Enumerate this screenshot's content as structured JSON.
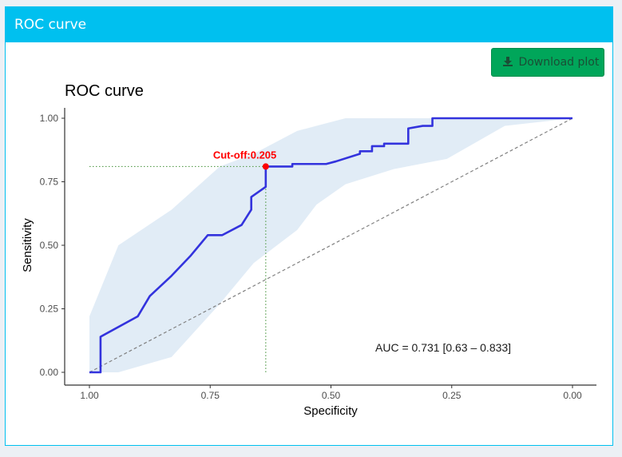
{
  "panel": {
    "title": "ROC curve"
  },
  "download": {
    "label": "Download plot",
    "icon": "download-icon"
  },
  "colors": {
    "header": "#00c0ef",
    "button": "#00a65a",
    "curve": "#3333dd",
    "band": "#dce9f5",
    "cutoff": "#ff0000",
    "guide": "#5a9e4f"
  },
  "chart_data": {
    "type": "line",
    "title": "ROC curve",
    "xlabel": "Specificity",
    "ylabel": "Sensitivity",
    "xlim": [
      1.0,
      0.0
    ],
    "ylim": [
      0.0,
      1.0
    ],
    "x_reversed": true,
    "xticks": [
      "1.00",
      "0.75",
      "0.50",
      "0.25",
      "0.00"
    ],
    "xtick_values": [
      1.0,
      0.75,
      0.5,
      0.25,
      0.0
    ],
    "yticks": [
      "0.00",
      "0.25",
      "0.50",
      "0.75",
      "1.00"
    ],
    "ytick_values": [
      0.0,
      0.25,
      0.5,
      0.75,
      1.0
    ],
    "grid": false,
    "series": [
      {
        "role": "roc",
        "x": [
          1.0,
          0.977,
          0.977,
          0.9,
          0.875,
          0.83,
          0.79,
          0.755,
          0.725,
          0.685,
          0.665,
          0.665,
          0.635,
          0.635,
          0.58,
          0.58,
          0.51,
          0.49,
          0.44,
          0.44,
          0.415,
          0.415,
          0.39,
          0.39,
          0.34,
          0.34,
          0.31,
          0.29,
          0.29,
          0.25,
          0.0
        ],
        "y": [
          0.0,
          0.0,
          0.14,
          0.22,
          0.3,
          0.38,
          0.46,
          0.54,
          0.54,
          0.58,
          0.64,
          0.69,
          0.73,
          0.81,
          0.81,
          0.82,
          0.82,
          0.83,
          0.86,
          0.87,
          0.87,
          0.89,
          0.89,
          0.9,
          0.9,
          0.96,
          0.97,
          0.97,
          1.0,
          1.0,
          1.0
        ]
      }
    ],
    "confidence_band": {
      "x": [
        1.0,
        0.94,
        0.83,
        0.73,
        0.66,
        0.57,
        0.53,
        0.47,
        0.37,
        0.26,
        0.14,
        0.0
      ],
      "upper": [
        0.22,
        0.5,
        0.64,
        0.81,
        0.86,
        0.95,
        0.97,
        1.0,
        1.0,
        1.0,
        1.0,
        1.0
      ],
      "lower": [
        0.0,
        0.0,
        0.06,
        0.27,
        0.43,
        0.56,
        0.66,
        0.74,
        0.8,
        0.84,
        0.97,
        1.0
      ]
    },
    "diagonal": {
      "x": [
        1.0,
        0.0
      ],
      "y": [
        0.0,
        1.0
      ]
    },
    "cutoff": {
      "label": "Cut-off:0.205",
      "x": 0.635,
      "y": 0.81
    },
    "auc_label": "AUC = 0.731 [0.63 – 0.833]"
  }
}
